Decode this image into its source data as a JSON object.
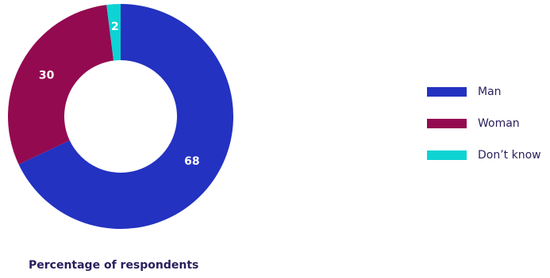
{
  "chart_data": {
    "type": "pie",
    "variant": "donut",
    "categories": [
      "Man",
      "Woman",
      "Don’t know"
    ],
    "values": [
      68,
      30,
      2
    ],
    "colors": [
      "#2332c0",
      "#930a50",
      "#0ed3d3"
    ],
    "data_labels": [
      "68",
      "30",
      "2"
    ],
    "legend_placement": "right",
    "caption": "Percentage of respondents"
  }
}
